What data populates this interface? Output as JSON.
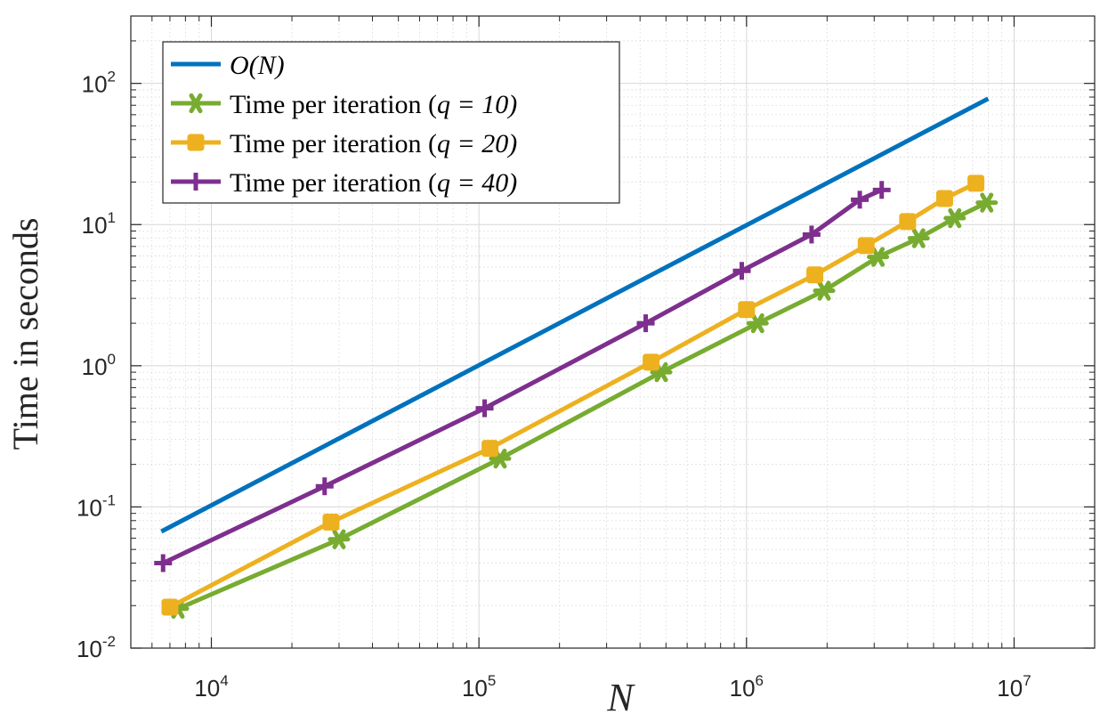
{
  "chart_data": {
    "type": "line",
    "xscale": "log",
    "yscale": "log",
    "xlim": [
      5000,
      20000000
    ],
    "ylim": [
      0.01,
      300
    ],
    "xlabel": "N",
    "ylabel": "Time in seconds",
    "grid": true,
    "legend_position": "top-left",
    "x_ticks": [
      {
        "base": "10",
        "exp": "4"
      },
      {
        "base": "10",
        "exp": "5"
      },
      {
        "base": "10",
        "exp": "6"
      },
      {
        "base": "10",
        "exp": "7"
      }
    ],
    "y_ticks": [
      {
        "base": "10",
        "exp": "-2"
      },
      {
        "base": "10",
        "exp": "-1"
      },
      {
        "base": "10",
        "exp": "0"
      },
      {
        "base": "10",
        "exp": "1"
      },
      {
        "base": "10",
        "exp": "2"
      }
    ],
    "series": [
      {
        "name": "O(N)",
        "legend_prefix": "O(N)",
        "legend_suffix": "",
        "color": "#0072BD",
        "marker": "none",
        "x": [
          6500,
          8000000
        ],
        "y": [
          0.067,
          78
        ]
      },
      {
        "name": "Time per iteration (q = 10)",
        "legend_prefix": "Time per iteration (",
        "legend_suffix": "q = 10)",
        "color": "#77AC30",
        "marker": "star",
        "x": [
          7500,
          30000,
          120000,
          480000,
          1100000,
          1950000,
          3100000,
          4400000,
          6000000,
          7900000
        ],
        "y": [
          0.019,
          0.059,
          0.22,
          0.9,
          2.0,
          3.4,
          5.9,
          8.0,
          11.1,
          14.3
        ]
      },
      {
        "name": "Time per iteration (q = 20)",
        "legend_prefix": "Time per iteration (",
        "legend_suffix": "q = 20)",
        "color": "#EDB120",
        "marker": "square",
        "x": [
          7000,
          28000,
          110000,
          440000,
          1000000,
          1800000,
          2800000,
          4000000,
          5500000,
          7200000
        ],
        "y": [
          0.0195,
          0.078,
          0.26,
          1.06,
          2.5,
          4.4,
          7.1,
          10.5,
          15.3,
          19.6
        ]
      },
      {
        "name": "Time per iteration (q = 40)",
        "legend_prefix": "Time per iteration (",
        "legend_suffix": "q = 40)",
        "color": "#7E2F8E",
        "marker": "plus",
        "x": [
          6600,
          26500,
          105000,
          420000,
          960000,
          1750000,
          2650000,
          3200000
        ],
        "y": [
          0.04,
          0.14,
          0.5,
          2.0,
          4.7,
          8.5,
          15.0,
          17.6
        ]
      }
    ]
  }
}
